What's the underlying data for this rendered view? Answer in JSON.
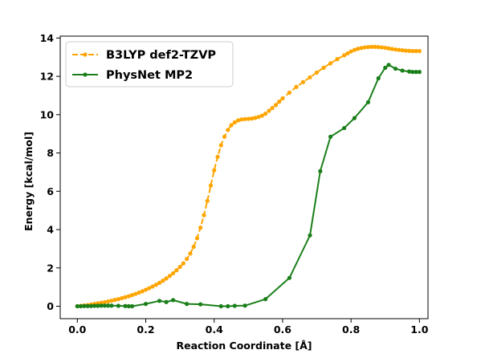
{
  "chart_data": {
    "type": "line",
    "title": "",
    "xlabel": "Reaction Coordinate [Å]",
    "ylabel": "Energy [kcal/mol]",
    "xlim": [
      -0.05,
      1.025
    ],
    "ylim": [
      -0.65,
      14.1
    ],
    "xticks": [
      0.0,
      0.2,
      0.4,
      0.6,
      0.8,
      1.0
    ],
    "xtick_labels": [
      "0.0",
      "0.2",
      "0.4",
      "0.6",
      "0.8",
      "1.0"
    ],
    "yticks": [
      0,
      2,
      4,
      6,
      8,
      10,
      12,
      14
    ],
    "ytick_labels": [
      "0",
      "2",
      "4",
      "6",
      "8",
      "10",
      "12",
      "14"
    ],
    "grid": false,
    "legend": "top-left",
    "series": [
      {
        "name": "B3LYP def2-TZVP",
        "color": "#ffa500",
        "linestyle": "dashed",
        "marker": "circle",
        "x": [
          0.0,
          0.01,
          0.02,
          0.03,
          0.04,
          0.05,
          0.06,
          0.07,
          0.08,
          0.09,
          0.1,
          0.11,
          0.12,
          0.13,
          0.14,
          0.15,
          0.16,
          0.17,
          0.18,
          0.19,
          0.2,
          0.21,
          0.22,
          0.23,
          0.24,
          0.25,
          0.26,
          0.27,
          0.28,
          0.29,
          0.3,
          0.31,
          0.32,
          0.33,
          0.34,
          0.35,
          0.36,
          0.37,
          0.38,
          0.39,
          0.4,
          0.41,
          0.42,
          0.43,
          0.44,
          0.45,
          0.46,
          0.47,
          0.48,
          0.49,
          0.5,
          0.51,
          0.52,
          0.53,
          0.54,
          0.55,
          0.56,
          0.57,
          0.58,
          0.59,
          0.6,
          0.62,
          0.64,
          0.66,
          0.68,
          0.7,
          0.72,
          0.74,
          0.76,
          0.78,
          0.79,
          0.8,
          0.81,
          0.82,
          0.83,
          0.84,
          0.85,
          0.86,
          0.87,
          0.88,
          0.89,
          0.9,
          0.91,
          0.92,
          0.93,
          0.94,
          0.95,
          0.96,
          0.97,
          0.98,
          0.99,
          1.0
        ],
        "y": [
          0.0,
          0.02,
          0.04,
          0.06,
          0.09,
          0.12,
          0.15,
          0.18,
          0.21,
          0.25,
          0.29,
          0.33,
          0.37,
          0.42,
          0.47,
          0.52,
          0.58,
          0.64,
          0.71,
          0.78,
          0.86,
          0.94,
          1.03,
          1.12,
          1.22,
          1.33,
          1.45,
          1.58,
          1.72,
          1.88,
          2.05,
          2.24,
          2.47,
          2.75,
          3.1,
          3.55,
          4.1,
          4.75,
          5.5,
          6.3,
          7.1,
          7.8,
          8.4,
          8.85,
          9.2,
          9.45,
          9.6,
          9.7,
          9.75,
          9.77,
          9.78,
          9.8,
          9.83,
          9.88,
          9.95,
          10.05,
          10.2,
          10.35,
          10.5,
          10.68,
          10.85,
          11.15,
          11.45,
          11.7,
          11.95,
          12.2,
          12.45,
          12.68,
          12.9,
          13.1,
          13.2,
          13.3,
          13.38,
          13.44,
          13.48,
          13.51,
          13.53,
          13.54,
          13.54,
          13.53,
          13.51,
          13.49,
          13.46,
          13.43,
          13.4,
          13.38,
          13.36,
          13.34,
          13.33,
          13.32,
          13.32,
          13.32
        ]
      },
      {
        "name": "PhysNet MP2",
        "color": "#1a7f1a",
        "linestyle": "solid",
        "marker": "circle",
        "x": [
          0.0,
          0.01,
          0.02,
          0.03,
          0.04,
          0.05,
          0.06,
          0.07,
          0.08,
          0.09,
          0.1,
          0.12,
          0.14,
          0.15,
          0.16,
          0.2,
          0.24,
          0.26,
          0.28,
          0.32,
          0.36,
          0.42,
          0.44,
          0.46,
          0.49,
          0.55,
          0.62,
          0.68,
          0.71,
          0.74,
          0.78,
          0.81,
          0.85,
          0.88,
          0.9,
          0.91,
          0.93,
          0.95,
          0.97,
          0.98,
          0.99,
          1.0
        ],
        "y": [
          0.0,
          0.0,
          0.01,
          0.01,
          0.01,
          0.02,
          0.02,
          0.03,
          0.03,
          0.03,
          0.03,
          0.02,
          0.01,
          0.0,
          0.0,
          0.12,
          0.28,
          0.22,
          0.32,
          0.12,
          0.1,
          0.0,
          0.0,
          0.02,
          0.03,
          0.37,
          1.48,
          3.7,
          7.05,
          8.85,
          9.3,
          9.82,
          10.65,
          11.9,
          12.45,
          12.6,
          12.4,
          12.3,
          12.25,
          12.23,
          12.23,
          12.23
        ]
      }
    ]
  }
}
